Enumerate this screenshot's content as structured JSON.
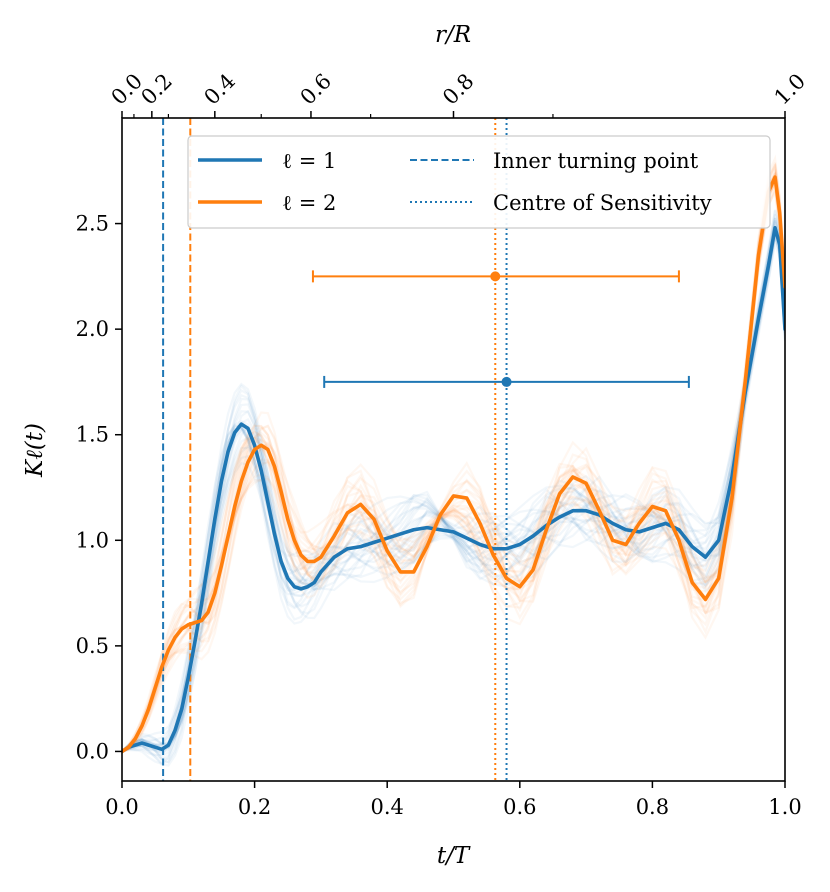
{
  "chart_data": {
    "type": "line",
    "xlabel": "t/T",
    "ylabel": "Kℓ(t)",
    "top_xlabel": "r/R",
    "xlim": [
      0.0,
      1.0
    ],
    "ylim": [
      -0.14,
      3.0
    ],
    "grid": false,
    "legend_position": "top-right",
    "x_ticks": [
      {
        "value": 0.0,
        "label": "0.0"
      },
      {
        "value": 0.2,
        "label": "0.2"
      },
      {
        "value": 0.4,
        "label": "0.4"
      },
      {
        "value": 0.6,
        "label": "0.6"
      },
      {
        "value": 0.8,
        "label": "0.8"
      },
      {
        "value": 1.0,
        "label": "1.0"
      }
    ],
    "y_ticks": [
      {
        "value": 0.0,
        "label": "0.0"
      },
      {
        "value": 0.5,
        "label": "0.5"
      },
      {
        "value": 1.0,
        "label": "1.0"
      },
      {
        "value": 1.5,
        "label": "1.5"
      },
      {
        "value": 2.0,
        "label": "2.0"
      },
      {
        "value": 2.5,
        "label": "2.5"
      }
    ],
    "top_ticks": [
      {
        "t": 0.0,
        "label": "0.0"
      },
      {
        "t": 0.045,
        "label": "0.2"
      },
      {
        "t": 0.14,
        "label": "0.4"
      },
      {
        "t": 0.285,
        "label": "0.6"
      },
      {
        "t": 0.5,
        "label": "0.8"
      },
      {
        "t": 1.0,
        "label": "1.0"
      }
    ],
    "top_minor_ticks": [
      0.018,
      0.07,
      0.21,
      0.375,
      0.65
    ],
    "series": [
      {
        "name": "ℓ = 1",
        "color": "#1f77b4",
        "x": [
          0.0,
          0.01,
          0.02,
          0.03,
          0.04,
          0.05,
          0.06,
          0.07,
          0.08,
          0.09,
          0.1,
          0.11,
          0.12,
          0.13,
          0.14,
          0.15,
          0.16,
          0.17,
          0.18,
          0.19,
          0.2,
          0.21,
          0.22,
          0.23,
          0.24,
          0.25,
          0.26,
          0.27,
          0.28,
          0.29,
          0.3,
          0.32,
          0.34,
          0.36,
          0.38,
          0.4,
          0.42,
          0.44,
          0.46,
          0.48,
          0.5,
          0.52,
          0.54,
          0.56,
          0.58,
          0.6,
          0.62,
          0.64,
          0.66,
          0.68,
          0.7,
          0.72,
          0.74,
          0.76,
          0.78,
          0.8,
          0.82,
          0.84,
          0.86,
          0.88,
          0.9,
          0.92,
          0.94,
          0.96,
          0.975,
          0.985,
          0.992,
          1.0
        ],
        "y": [
          0.0,
          0.02,
          0.03,
          0.04,
          0.03,
          0.02,
          0.01,
          0.03,
          0.1,
          0.2,
          0.35,
          0.52,
          0.7,
          0.9,
          1.1,
          1.28,
          1.42,
          1.51,
          1.55,
          1.53,
          1.45,
          1.33,
          1.18,
          1.03,
          0.9,
          0.82,
          0.78,
          0.77,
          0.78,
          0.8,
          0.85,
          0.92,
          0.96,
          0.97,
          0.99,
          1.01,
          1.03,
          1.05,
          1.06,
          1.05,
          1.04,
          1.01,
          0.98,
          0.96,
          0.96,
          0.98,
          1.02,
          1.07,
          1.11,
          1.14,
          1.14,
          1.12,
          1.08,
          1.05,
          1.04,
          1.06,
          1.08,
          1.05,
          0.97,
          0.92,
          1.0,
          1.3,
          1.7,
          2.05,
          2.3,
          2.48,
          2.4,
          2.0
        ]
      },
      {
        "name": "ℓ = 2",
        "color": "#ff7f0e",
        "x": [
          0.0,
          0.01,
          0.02,
          0.03,
          0.04,
          0.05,
          0.06,
          0.07,
          0.08,
          0.09,
          0.1,
          0.11,
          0.12,
          0.13,
          0.14,
          0.15,
          0.16,
          0.17,
          0.18,
          0.19,
          0.2,
          0.21,
          0.22,
          0.23,
          0.24,
          0.25,
          0.26,
          0.27,
          0.28,
          0.29,
          0.3,
          0.32,
          0.34,
          0.36,
          0.38,
          0.4,
          0.42,
          0.44,
          0.46,
          0.48,
          0.5,
          0.52,
          0.54,
          0.56,
          0.58,
          0.6,
          0.62,
          0.64,
          0.66,
          0.68,
          0.7,
          0.72,
          0.74,
          0.76,
          0.78,
          0.8,
          0.82,
          0.84,
          0.86,
          0.88,
          0.9,
          0.92,
          0.94,
          0.96,
          0.975,
          0.985,
          0.992,
          1.0
        ],
        "y": [
          0.0,
          0.02,
          0.06,
          0.12,
          0.2,
          0.3,
          0.4,
          0.48,
          0.54,
          0.58,
          0.6,
          0.61,
          0.62,
          0.66,
          0.75,
          0.88,
          1.02,
          1.16,
          1.28,
          1.37,
          1.43,
          1.45,
          1.43,
          1.35,
          1.23,
          1.1,
          1.0,
          0.93,
          0.9,
          0.9,
          0.92,
          1.02,
          1.13,
          1.17,
          1.1,
          0.95,
          0.85,
          0.85,
          0.97,
          1.12,
          1.21,
          1.2,
          1.08,
          0.93,
          0.82,
          0.78,
          0.86,
          1.05,
          1.22,
          1.3,
          1.27,
          1.14,
          1.0,
          0.98,
          1.08,
          1.16,
          1.14,
          1.0,
          0.8,
          0.72,
          0.82,
          1.2,
          1.75,
          2.35,
          2.65,
          2.72,
          2.55,
          2.2
        ]
      }
    ],
    "vertical_lines": [
      {
        "x": 0.062,
        "color": "#1f77b4",
        "style": "dashed",
        "legend": "Inner turning point"
      },
      {
        "x": 0.103,
        "color": "#ff7f0e",
        "style": "dashed"
      },
      {
        "x": 0.58,
        "color": "#1f77b4",
        "style": "dotted",
        "legend": "Centre of Sensitivity"
      },
      {
        "x": 0.563,
        "color": "#ff7f0e",
        "style": "dotted"
      }
    ],
    "error_bars": [
      {
        "x": 0.563,
        "y": 2.25,
        "xmin": 0.288,
        "xmax": 0.84,
        "color": "#ff7f0e"
      },
      {
        "x": 0.58,
        "y": 1.75,
        "xmin": 0.305,
        "xmax": 0.855,
        "color": "#1f77b4"
      }
    ],
    "legend": {
      "entries": [
        {
          "label": "ℓ = 1",
          "color": "#1f77b4",
          "style": "solid"
        },
        {
          "label": "ℓ = 2",
          "color": "#ff7f0e",
          "style": "solid"
        },
        {
          "label": "Inner turning point",
          "color": "#1f77b4",
          "style": "dashed"
        },
        {
          "label": "Centre of Sensitivity",
          "color": "#1f77b4",
          "style": "dotted"
        }
      ]
    }
  }
}
